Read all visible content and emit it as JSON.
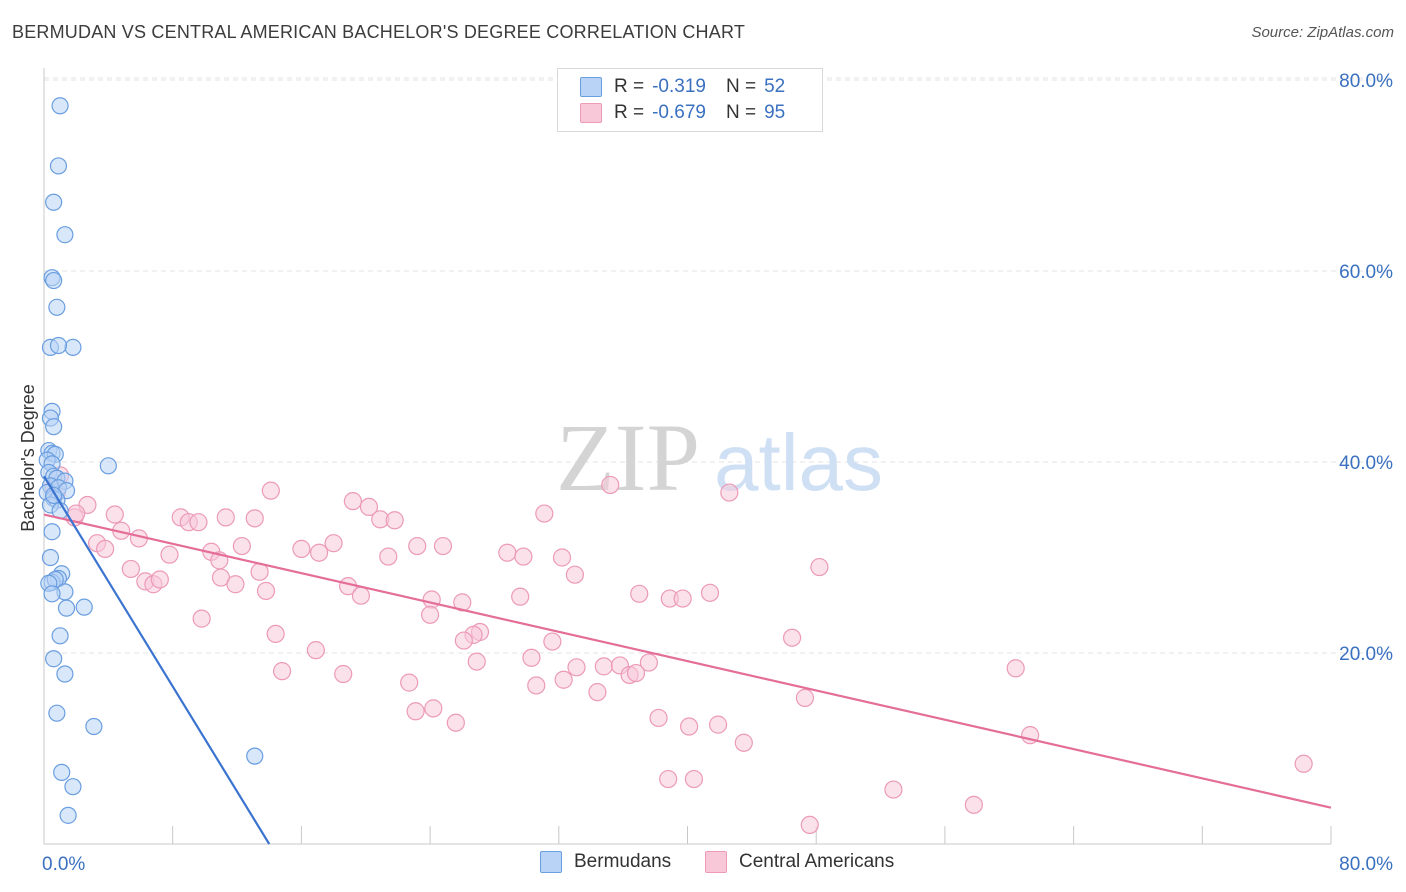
{
  "header": {
    "title": "BERMUDAN VS CENTRAL AMERICAN BACHELOR'S DEGREE CORRELATION CHART",
    "source": "Source: ZipAtlas.com"
  },
  "legend": {
    "rows": [
      {
        "r_label": "R =",
        "r_value": "-0.319",
        "n_label": "N =",
        "n_value": "52"
      },
      {
        "r_label": "R =",
        "r_value": "-0.679",
        "n_label": "N =",
        "n_value": "95"
      }
    ],
    "bottom": [
      "Bermudans",
      "Central Americans"
    ]
  },
  "watermark": {
    "zip": "ZIP",
    "atlas": "atlas"
  },
  "colors": {
    "blue_fill": "#b8d3f5",
    "blue_stroke": "#6a9ee0",
    "blue_line": "#3a74d0",
    "pink_fill": "#f8c8d8",
    "pink_stroke": "#ec9ab7",
    "pink_line": "#e46e98",
    "tick_label": "#3a70c0",
    "grid": "#e3e3e3"
  },
  "chart_data": {
    "type": "scatter",
    "title": "BERMUDAN VS CENTRAL AMERICAN BACHELOR'S DEGREE CORRELATION CHART",
    "xlabel": "",
    "ylabel": "Bachelor's Degree",
    "xlim": [
      0,
      80
    ],
    "ylim": [
      0,
      82
    ],
    "x_tick_labels": [
      "0.0%",
      "80.0%"
    ],
    "y_ticks": [
      20,
      40,
      60,
      80
    ],
    "y_tick_labels": [
      "20.0%",
      "40.0%",
      "60.0%",
      "80.0%"
    ],
    "grid": true,
    "legend_position": "top-center",
    "series": [
      {
        "name": "Bermudans",
        "r": -0.319,
        "n": 52,
        "trend": {
          "x": [
            0.0,
            14.0
          ],
          "y": [
            38.5,
            0.0
          ]
        },
        "points": [
          [
            1.0,
            77.3
          ],
          [
            0.9,
            71.0
          ],
          [
            0.6,
            67.2
          ],
          [
            1.3,
            63.8
          ],
          [
            0.5,
            59.3
          ],
          [
            0.6,
            59.0
          ],
          [
            0.8,
            56.2
          ],
          [
            0.4,
            52.0
          ],
          [
            1.8,
            52.0
          ],
          [
            0.9,
            52.2
          ],
          [
            0.5,
            45.3
          ],
          [
            0.4,
            44.6
          ],
          [
            0.6,
            43.7
          ],
          [
            0.3,
            41.2
          ],
          [
            0.5,
            40.9
          ],
          [
            0.7,
            40.8
          ],
          [
            0.2,
            40.2
          ],
          [
            0.5,
            39.8
          ],
          [
            4.0,
            39.6
          ],
          [
            0.3,
            38.9
          ],
          [
            0.6,
            38.5
          ],
          [
            0.8,
            38.3
          ],
          [
            1.3,
            38.0
          ],
          [
            0.4,
            37.5
          ],
          [
            0.9,
            37.3
          ],
          [
            1.4,
            37.0
          ],
          [
            0.2,
            36.8
          ],
          [
            0.6,
            36.2
          ],
          [
            0.8,
            36.0
          ],
          [
            0.4,
            35.5
          ],
          [
            0.5,
            32.7
          ],
          [
            0.4,
            30.0
          ],
          [
            1.1,
            28.3
          ],
          [
            0.9,
            27.8
          ],
          [
            0.5,
            27.4
          ],
          [
            0.7,
            27.7
          ],
          [
            0.3,
            27.3
          ],
          [
            1.3,
            26.4
          ],
          [
            0.5,
            26.2
          ],
          [
            2.5,
            24.8
          ],
          [
            1.4,
            24.7
          ],
          [
            1.0,
            21.8
          ],
          [
            0.6,
            19.4
          ],
          [
            1.3,
            17.8
          ],
          [
            0.8,
            13.7
          ],
          [
            3.1,
            12.3
          ],
          [
            13.1,
            9.2
          ],
          [
            1.1,
            7.5
          ],
          [
            1.8,
            6.0
          ],
          [
            1.5,
            3.0
          ],
          [
            0.6,
            36.5
          ],
          [
            1.0,
            34.9
          ]
        ]
      },
      {
        "name": "Central Americans",
        "r": -0.679,
        "n": 95,
        "trend": {
          "x": [
            0.0,
            80.0
          ],
          "y": [
            34.5,
            3.8
          ]
        },
        "points": [
          [
            1.0,
            38.6
          ],
          [
            0.6,
            37.3
          ],
          [
            2.7,
            35.5
          ],
          [
            4.4,
            34.5
          ],
          [
            1.9,
            34.2
          ],
          [
            8.5,
            34.2
          ],
          [
            11.3,
            34.2
          ],
          [
            9.0,
            33.7
          ],
          [
            9.6,
            33.7
          ],
          [
            4.8,
            32.8
          ],
          [
            5.9,
            32.0
          ],
          [
            3.3,
            31.5
          ],
          [
            3.8,
            30.9
          ],
          [
            12.3,
            31.2
          ],
          [
            16.0,
            30.9
          ],
          [
            17.1,
            30.5
          ],
          [
            18.0,
            31.5
          ],
          [
            10.4,
            30.6
          ],
          [
            7.8,
            30.3
          ],
          [
            10.9,
            29.7
          ],
          [
            14.1,
            37.0
          ],
          [
            19.2,
            35.9
          ],
          [
            20.2,
            35.3
          ],
          [
            20.9,
            34.0
          ],
          [
            21.8,
            33.9
          ],
          [
            31.1,
            34.6
          ],
          [
            35.2,
            37.6
          ],
          [
            42.6,
            36.8
          ],
          [
            21.4,
            30.1
          ],
          [
            23.2,
            31.2
          ],
          [
            24.8,
            31.2
          ],
          [
            28.8,
            30.5
          ],
          [
            29.8,
            30.1
          ],
          [
            32.2,
            30.0
          ],
          [
            5.4,
            28.8
          ],
          [
            6.3,
            27.5
          ],
          [
            6.8,
            27.2
          ],
          [
            7.2,
            27.7
          ],
          [
            11.0,
            27.9
          ],
          [
            11.9,
            27.2
          ],
          [
            13.4,
            28.5
          ],
          [
            13.8,
            26.5
          ],
          [
            18.9,
            27.0
          ],
          [
            19.7,
            26.0
          ],
          [
            24.1,
            25.6
          ],
          [
            26.0,
            25.3
          ],
          [
            29.6,
            25.9
          ],
          [
            33.0,
            28.2
          ],
          [
            37.0,
            26.2
          ],
          [
            38.9,
            25.7
          ],
          [
            39.7,
            25.7
          ],
          [
            41.4,
            26.3
          ],
          [
            48.2,
            29.0
          ],
          [
            9.8,
            23.6
          ],
          [
            14.4,
            22.0
          ],
          [
            16.9,
            20.3
          ],
          [
            24.0,
            24.0
          ],
          [
            27.1,
            22.2
          ],
          [
            26.7,
            21.9
          ],
          [
            26.1,
            21.3
          ],
          [
            31.6,
            21.2
          ],
          [
            46.5,
            21.6
          ],
          [
            14.8,
            18.1
          ],
          [
            18.6,
            17.8
          ],
          [
            22.7,
            16.9
          ],
          [
            26.9,
            19.1
          ],
          [
            30.3,
            19.5
          ],
          [
            30.6,
            16.6
          ],
          [
            32.3,
            17.2
          ],
          [
            33.1,
            18.5
          ],
          [
            34.4,
            15.9
          ],
          [
            34.8,
            18.6
          ],
          [
            35.8,
            18.7
          ],
          [
            36.4,
            17.7
          ],
          [
            36.8,
            17.9
          ],
          [
            37.6,
            19.0
          ],
          [
            47.3,
            15.3
          ],
          [
            60.4,
            18.4
          ],
          [
            23.1,
            13.9
          ],
          [
            24.2,
            14.2
          ],
          [
            25.6,
            12.7
          ],
          [
            38.2,
            13.2
          ],
          [
            40.1,
            12.3
          ],
          [
            41.9,
            12.5
          ],
          [
            43.5,
            10.6
          ],
          [
            61.3,
            11.4
          ],
          [
            38.8,
            6.8
          ],
          [
            40.4,
            6.8
          ],
          [
            52.8,
            5.7
          ],
          [
            57.8,
            4.1
          ],
          [
            78.3,
            8.4
          ],
          [
            47.6,
            2.0
          ],
          [
            13.1,
            34.1
          ],
          [
            2.0,
            34.6
          ],
          [
            0.8,
            36.8
          ]
        ]
      }
    ]
  }
}
